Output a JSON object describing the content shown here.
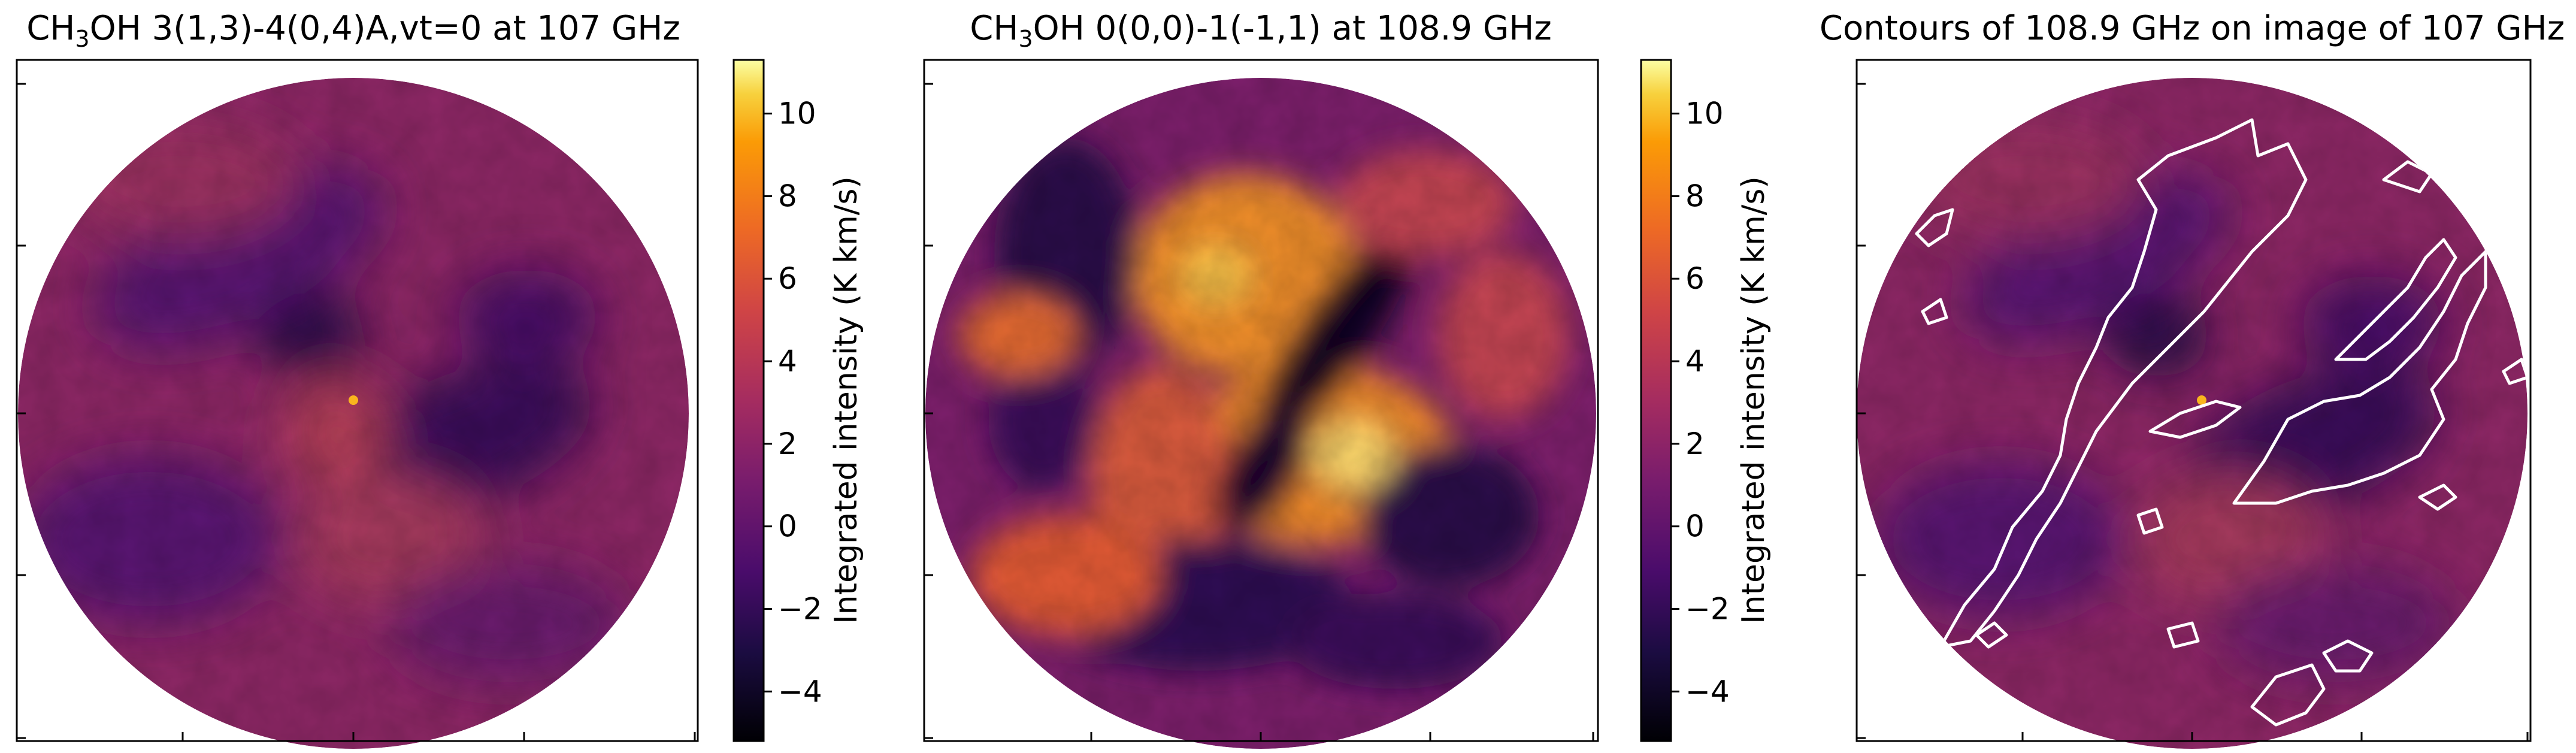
{
  "chart_data": [
    {
      "type": "heatmap",
      "title_prefix": "CH",
      "title_sub": "3",
      "title_suffix": "OH 3(1,3)-4(0,4)A,vt=0 at 107 GHz",
      "colormap": "inferno",
      "colorbar": {
        "label": "Integrated intensity (K km/s)",
        "range": [
          -5.2,
          11.3
        ],
        "ticks": [
          -4,
          -2,
          0,
          2,
          4,
          6,
          8,
          10
        ],
        "tick_labels": [
          "−4",
          "−2",
          "0",
          "2",
          "4",
          "6",
          "8",
          "10"
        ]
      },
      "features": [
        {
          "x": 0.0,
          "y": -0.22,
          "value": 0.0
        },
        {
          "x": -0.35,
          "y": 0.25,
          "value": -1.5
        },
        {
          "x": 0.35,
          "y": -0.08,
          "value": -2.5
        },
        {
          "x": -0.18,
          "y": 0.3,
          "value": -3.0
        },
        {
          "x": 0.0,
          "y": 0.03,
          "value": 7.5
        },
        {
          "x": -0.55,
          "y": -0.35,
          "value": -1.0
        }
      ]
    },
    {
      "type": "heatmap",
      "title_prefix": "CH",
      "title_sub": "3",
      "title_suffix": "OH 0(0,0)-1(-1,1) at 108.9 GHz",
      "colormap": "inferno",
      "colorbar": {
        "label": "Integrated intensity (K km/s)",
        "range": [
          -5.2,
          11.3
        ],
        "ticks": [
          -4,
          -2,
          0,
          2,
          4,
          6,
          8,
          10
        ],
        "tick_labels": [
          "−4",
          "−2",
          "0",
          "2",
          "4",
          "6",
          "8",
          "10"
        ]
      },
      "features": [
        {
          "x": -0.1,
          "y": 0.3,
          "value": 5.5
        },
        {
          "x": 0.35,
          "y": -0.2,
          "value": 6.0
        },
        {
          "x": 0.25,
          "y": 0.18,
          "value": -5.0
        },
        {
          "x": 0.0,
          "y": -0.2,
          "value": -5.0
        },
        {
          "x": -0.35,
          "y": -0.35,
          "value": 4.0
        },
        {
          "x": -0.6,
          "y": 0.4,
          "value": -3.5
        },
        {
          "x": 0.55,
          "y": -0.5,
          "value": -3.0
        }
      ]
    },
    {
      "type": "heatmap",
      "title": "Contours of 108.9 GHz on image of 107 GHz",
      "colormap": "inferno",
      "contour_color": "#ffffff"
    }
  ]
}
